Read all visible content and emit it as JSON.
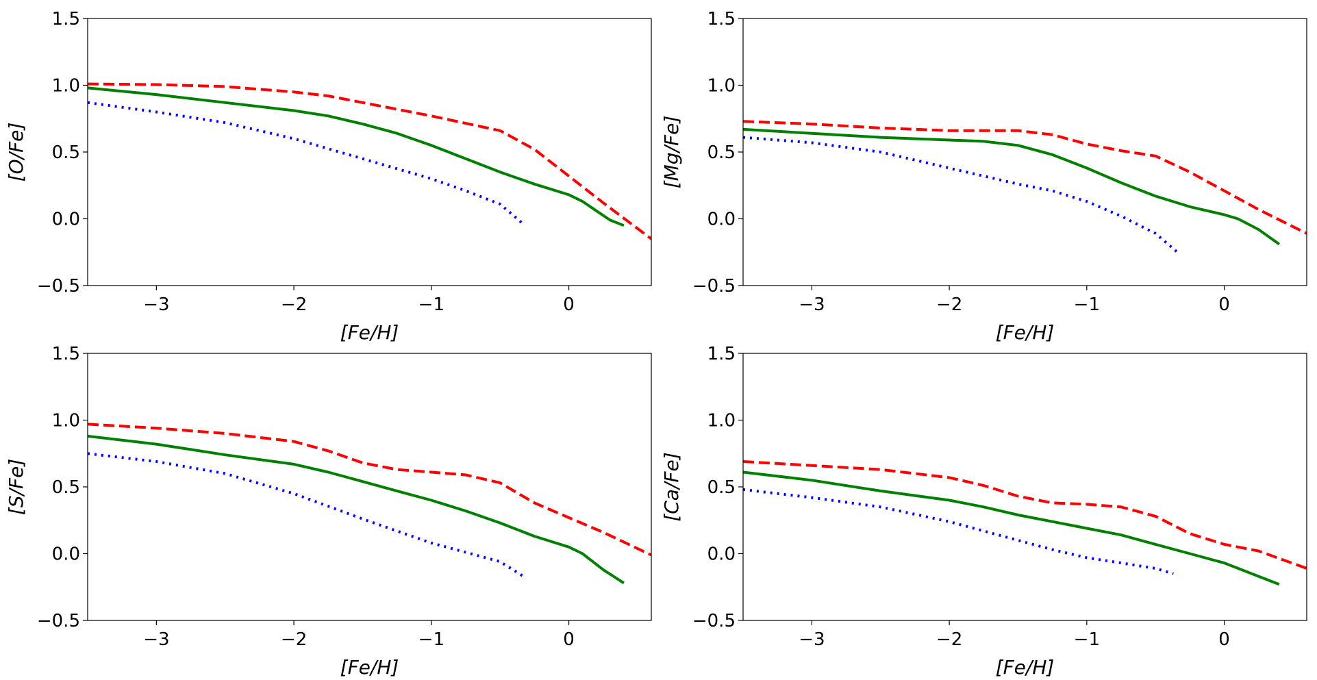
{
  "chart_data": [
    {
      "type": "line",
      "xlabel": "[Fe/H]",
      "ylabel": "[O/Fe]",
      "xlim": [
        -3.5,
        0.6
      ],
      "ylim": [
        -0.5,
        1.5
      ],
      "xticks": [
        -3,
        -2,
        -1,
        0
      ],
      "xtick_labels": [
        "−3",
        "−2",
        "−1",
        "0"
      ],
      "yticks": [
        -0.5,
        0.0,
        0.5,
        1.0,
        1.5
      ],
      "ytick_labels": [
        "−0.5",
        "0.0",
        "0.5",
        "1.0",
        "1.5"
      ],
      "series": [
        {
          "name": "red-dashed",
          "color": "#ff0000",
          "style": "dashed",
          "x": [
            -3.5,
            -3.0,
            -2.5,
            -2.0,
            -1.75,
            -1.5,
            -1.0,
            -0.5,
            -0.25,
            0.0,
            0.25,
            0.6
          ],
          "y": [
            1.01,
            1.005,
            0.99,
            0.95,
            0.92,
            0.87,
            0.77,
            0.66,
            0.52,
            0.32,
            0.12,
            -0.15
          ]
        },
        {
          "name": "green-solid",
          "color": "#008000",
          "style": "solid",
          "x": [
            -3.5,
            -3.0,
            -2.5,
            -2.0,
            -1.75,
            -1.5,
            -1.25,
            -1.0,
            -0.75,
            -0.5,
            -0.25,
            0.0,
            0.1,
            0.2,
            0.3,
            0.4
          ],
          "y": [
            0.98,
            0.93,
            0.87,
            0.81,
            0.77,
            0.71,
            0.64,
            0.55,
            0.45,
            0.35,
            0.26,
            0.18,
            0.13,
            0.06,
            -0.01,
            -0.05
          ]
        },
        {
          "name": "blue-dotted",
          "color": "#0000ff",
          "style": "dotted",
          "x": [
            -3.5,
            -3.0,
            -2.5,
            -2.0,
            -1.5,
            -1.0,
            -0.75,
            -0.5,
            -0.33
          ],
          "y": [
            0.87,
            0.8,
            0.72,
            0.6,
            0.45,
            0.3,
            0.21,
            0.11,
            -0.04
          ]
        }
      ]
    },
    {
      "type": "line",
      "xlabel": "[Fe/H]",
      "ylabel": "[Mg/Fe]",
      "xlim": [
        -3.5,
        0.6
      ],
      "ylim": [
        -0.5,
        1.5
      ],
      "xticks": [
        -3,
        -2,
        -1,
        0
      ],
      "xtick_labels": [
        "−3",
        "−2",
        "−1",
        "0"
      ],
      "yticks": [
        -0.5,
        0.0,
        0.5,
        1.0,
        1.5
      ],
      "ytick_labels": [
        "−0.5",
        "0.0",
        "0.5",
        "1.0",
        "1.5"
      ],
      "series": [
        {
          "name": "red-dashed",
          "color": "#ff0000",
          "style": "dashed",
          "x": [
            -3.5,
            -3.0,
            -2.5,
            -2.0,
            -1.5,
            -1.25,
            -1.0,
            -0.75,
            -0.5,
            -0.25,
            0.0,
            0.25,
            0.6
          ],
          "y": [
            0.73,
            0.71,
            0.68,
            0.66,
            0.66,
            0.63,
            0.56,
            0.51,
            0.47,
            0.35,
            0.21,
            0.07,
            -0.11
          ]
        },
        {
          "name": "green-solid",
          "color": "#008000",
          "style": "solid",
          "x": [
            -3.5,
            -3.0,
            -2.5,
            -2.0,
            -1.75,
            -1.5,
            -1.25,
            -1.0,
            -0.75,
            -0.5,
            -0.25,
            0.0,
            0.1,
            0.25,
            0.4
          ],
          "y": [
            0.67,
            0.64,
            0.61,
            0.59,
            0.58,
            0.55,
            0.48,
            0.38,
            0.27,
            0.17,
            0.09,
            0.03,
            0.0,
            -0.08,
            -0.19
          ]
        },
        {
          "name": "blue-dotted",
          "color": "#0000ff",
          "style": "dotted",
          "x": [
            -3.5,
            -3.0,
            -2.5,
            -2.0,
            -1.5,
            -1.25,
            -1.0,
            -0.75,
            -0.5,
            -0.33
          ],
          "y": [
            0.61,
            0.57,
            0.5,
            0.38,
            0.26,
            0.21,
            0.13,
            0.02,
            -0.11,
            -0.26
          ]
        }
      ]
    },
    {
      "type": "line",
      "xlabel": "[Fe/H]",
      "ylabel": "[S/Fe]",
      "xlim": [
        -3.5,
        0.6
      ],
      "ylim": [
        -0.5,
        1.5
      ],
      "xticks": [
        -3,
        -2,
        -1,
        0
      ],
      "xtick_labels": [
        "−3",
        "−2",
        "−1",
        "0"
      ],
      "yticks": [
        -0.5,
        0.0,
        0.5,
        1.0,
        1.5
      ],
      "ytick_labels": [
        "−0.5",
        "0.0",
        "0.5",
        "1.0",
        "1.5"
      ],
      "series": [
        {
          "name": "red-dashed",
          "color": "#ff0000",
          "style": "dashed",
          "x": [
            -3.5,
            -3.0,
            -2.5,
            -2.0,
            -1.75,
            -1.5,
            -1.25,
            -1.0,
            -0.75,
            -0.5,
            -0.25,
            0.0,
            0.25,
            0.6
          ],
          "y": [
            0.97,
            0.94,
            0.9,
            0.84,
            0.77,
            0.68,
            0.63,
            0.61,
            0.59,
            0.53,
            0.38,
            0.27,
            0.16,
            -0.01
          ]
        },
        {
          "name": "green-solid",
          "color": "#008000",
          "style": "solid",
          "x": [
            -3.5,
            -3.0,
            -2.5,
            -2.0,
            -1.75,
            -1.5,
            -1.25,
            -1.0,
            -0.75,
            -0.5,
            -0.25,
            0.0,
            0.1,
            0.25,
            0.4
          ],
          "y": [
            0.88,
            0.82,
            0.74,
            0.67,
            0.61,
            0.54,
            0.47,
            0.4,
            0.32,
            0.23,
            0.13,
            0.05,
            0.0,
            -0.12,
            -0.22
          ]
        },
        {
          "name": "blue-dotted",
          "color": "#0000ff",
          "style": "dotted",
          "x": [
            -3.5,
            -3.0,
            -2.5,
            -2.0,
            -1.5,
            -1.0,
            -0.75,
            -0.5,
            -0.33
          ],
          "y": [
            0.75,
            0.69,
            0.6,
            0.45,
            0.26,
            0.08,
            0.01,
            -0.06,
            -0.17
          ]
        }
      ]
    },
    {
      "type": "line",
      "xlabel": "[Fe/H]",
      "ylabel": "[Ca/Fe]",
      "xlim": [
        -3.5,
        0.6
      ],
      "ylim": [
        -0.5,
        1.5
      ],
      "xticks": [
        -3,
        -2,
        -1,
        0
      ],
      "xtick_labels": [
        "−3",
        "−2",
        "−1",
        "0"
      ],
      "yticks": [
        -0.5,
        0.0,
        0.5,
        1.0,
        1.5
      ],
      "ytick_labels": [
        "−0.5",
        "0.0",
        "0.5",
        "1.0",
        "1.5"
      ],
      "series": [
        {
          "name": "red-dashed",
          "color": "#ff0000",
          "style": "dashed",
          "x": [
            -3.5,
            -3.0,
            -2.5,
            -2.0,
            -1.75,
            -1.5,
            -1.25,
            -1.0,
            -0.75,
            -0.5,
            -0.25,
            0.0,
            0.25,
            0.6
          ],
          "y": [
            0.69,
            0.66,
            0.63,
            0.57,
            0.51,
            0.43,
            0.38,
            0.37,
            0.35,
            0.28,
            0.15,
            0.07,
            0.02,
            -0.11
          ]
        },
        {
          "name": "green-solid",
          "color": "#008000",
          "style": "solid",
          "x": [
            -3.5,
            -3.0,
            -2.5,
            -2.0,
            -1.75,
            -1.5,
            -1.25,
            -1.0,
            -0.75,
            -0.5,
            -0.25,
            0.0,
            0.25,
            0.4
          ],
          "y": [
            0.61,
            0.55,
            0.47,
            0.4,
            0.35,
            0.29,
            0.24,
            0.19,
            0.14,
            0.07,
            -0.0,
            -0.07,
            -0.17,
            -0.23
          ]
        },
        {
          "name": "blue-dotted",
          "color": "#0000ff",
          "style": "dotted",
          "x": [
            -3.5,
            -3.0,
            -2.5,
            -2.0,
            -1.75,
            -1.5,
            -1.25,
            -1.0,
            -0.75,
            -0.5,
            -0.37
          ],
          "y": [
            0.48,
            0.42,
            0.35,
            0.24,
            0.17,
            0.1,
            0.03,
            -0.03,
            -0.07,
            -0.11,
            -0.15
          ]
        }
      ]
    }
  ]
}
